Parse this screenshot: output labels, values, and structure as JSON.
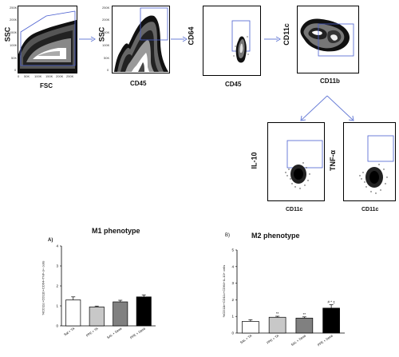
{
  "flow_panels": [
    {
      "id": "p1",
      "ylabel": "SSC",
      "xlabel": "FSC",
      "xticks": [
        "0",
        "50K",
        "100K",
        "150K",
        "200K",
        "250K"
      ],
      "yticks": [
        "0",
        "50K",
        "100K",
        "150K",
        "200K",
        "250K"
      ]
    },
    {
      "id": "p2",
      "ylabel": "SSC",
      "xlabel": "CD45",
      "yticks": [
        "0",
        "50K",
        "100K",
        "150K",
        "200K",
        "250K"
      ]
    },
    {
      "id": "p3",
      "ylabel": "CD64",
      "xlabel": "CD45"
    },
    {
      "id": "p4",
      "ylabel": "CD11c",
      "xlabel": "CD11b"
    },
    {
      "id": "p5",
      "ylabel": "IL-10",
      "xlabel": "CD11c"
    },
    {
      "id": "p6",
      "ylabel": "TNF-α",
      "xlabel": "CD11c"
    }
  ],
  "chart_data": [
    {
      "type": "bar",
      "panel_letter": "A)",
      "title": "M1 phenotype",
      "ylabel": "%CD11c+CD11b+CD64+TNF-α+ cells",
      "categories": [
        "Sal + TA",
        "PPE + TA",
        "SAL + Dexa",
        "PPE + Dexa"
      ],
      "values": [
        1.3,
        0.95,
        1.2,
        1.45
      ],
      "errors": [
        0.15,
        0.04,
        0.08,
        0.1
      ],
      "ylim": [
        0,
        4
      ],
      "yticks": [
        "0",
        "1",
        "2",
        "3",
        "4"
      ],
      "colors": [
        "#ffffff",
        "#c8c8c8",
        "#808080",
        "#000000"
      ]
    },
    {
      "type": "bar",
      "panel_letter": "B)",
      "title": "M2 phenotype",
      "ylabel": "%CD11b+CD11c+CD64+IL-10+ cells",
      "categories": [
        "SAL + TA",
        "PPE + TA",
        "SAL + Dexa",
        "PPE + Dexa"
      ],
      "values": [
        0.7,
        0.95,
        0.9,
        1.5
      ],
      "errors": [
        0.1,
        0.06,
        0.07,
        0.2
      ],
      "annotations": [
        "",
        "**",
        "**",
        "# * ±"
      ],
      "ylim": [
        0,
        5
      ],
      "yticks": [
        "0",
        "1",
        "2",
        "3",
        "4",
        "5"
      ],
      "colors": [
        "#ffffff",
        "#c8c8c8",
        "#808080",
        "#000000"
      ]
    }
  ]
}
